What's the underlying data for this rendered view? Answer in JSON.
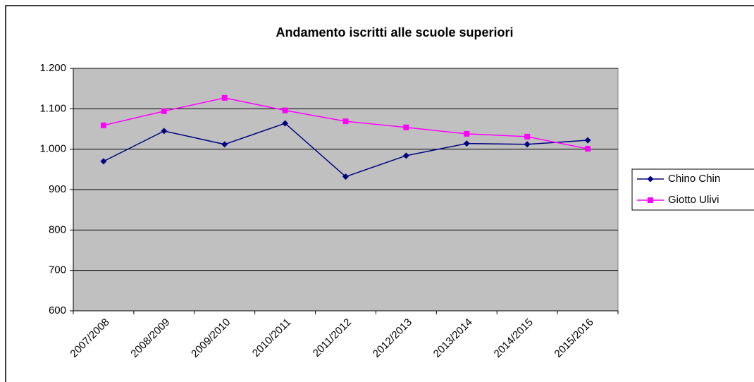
{
  "chart_data": {
    "type": "line",
    "title": "Andamento iscritti alle scuole superiori",
    "categories": [
      "2007/2008",
      "2008/2009",
      "2009/2010",
      "2010/2011",
      "2011/2012",
      "2012/2013",
      "2013/2014",
      "2014/2015",
      "2015/2016"
    ],
    "series": [
      {
        "name": "Chino Chin",
        "color": "#000080",
        "marker": "diamond",
        "values": [
          970,
          1045,
          1012,
          1064,
          932,
          984,
          1014,
          1012,
          1022
        ]
      },
      {
        "name": "Giotto Ulivi",
        "color": "#ff00ff",
        "marker": "square",
        "values": [
          1059,
          1094,
          1127,
          1096,
          1069,
          1054,
          1038,
          1031,
          1001
        ]
      }
    ],
    "ylim": [
      600,
      1200
    ],
    "yticks": [
      600,
      700,
      800,
      900,
      1000,
      1100,
      1200
    ],
    "ytick_labels": [
      "600",
      "700",
      "800",
      "900",
      "1.000",
      "1.100",
      "1.200"
    ],
    "grid": true,
    "legend": "right"
  }
}
